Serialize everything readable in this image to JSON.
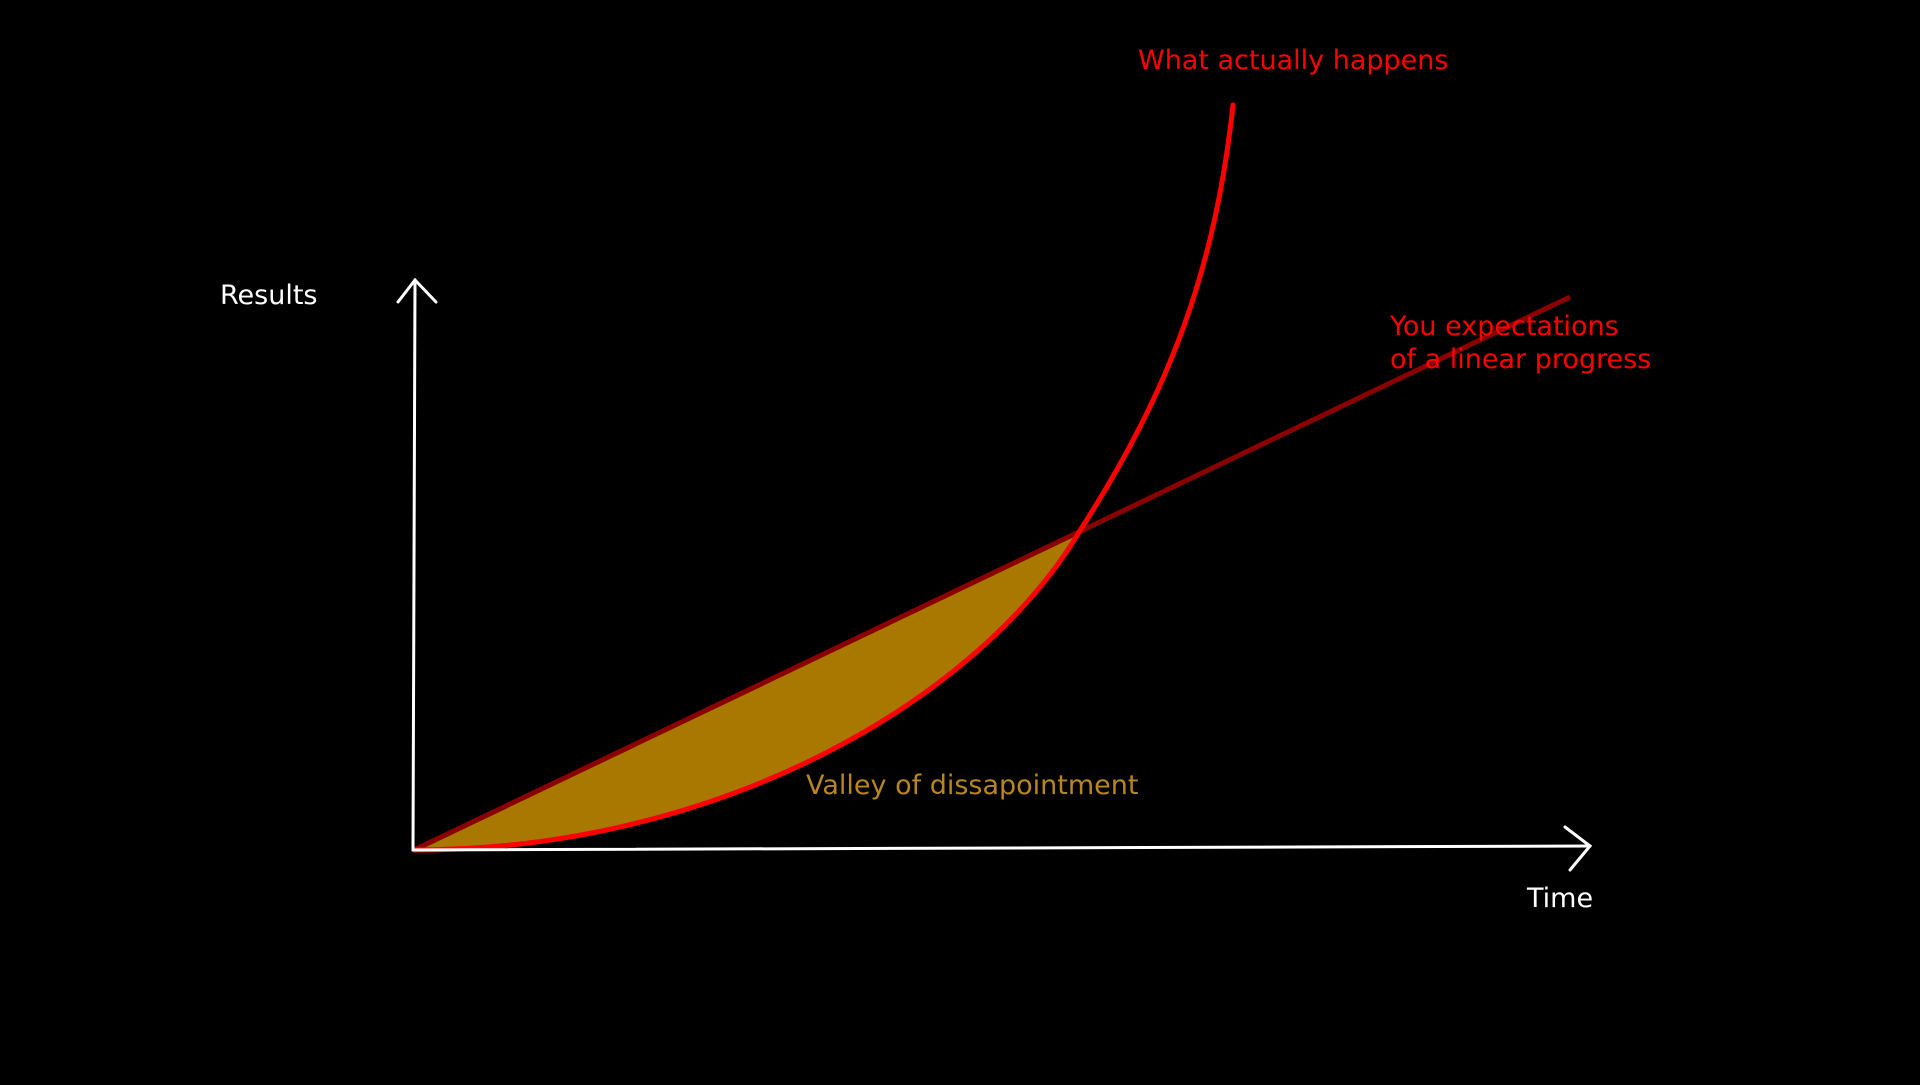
{
  "axes": {
    "y_label": "Results",
    "x_label": "Time"
  },
  "annotations": {
    "actual_label": "What actually happens",
    "expectation_line1": "You expectations",
    "expectation_line2": "of a linear progress",
    "valley_label": "Valley of dissapointment"
  },
  "colors": {
    "background": "#000000",
    "axes": "#ffffff",
    "actual_curve": "#ff0000",
    "expectation_line": "#8b0000",
    "valley_fill": "#a87800",
    "valley_text": "#b8861f",
    "actual_text": "#ff0000",
    "expectation_text": "#ff0000"
  }
}
